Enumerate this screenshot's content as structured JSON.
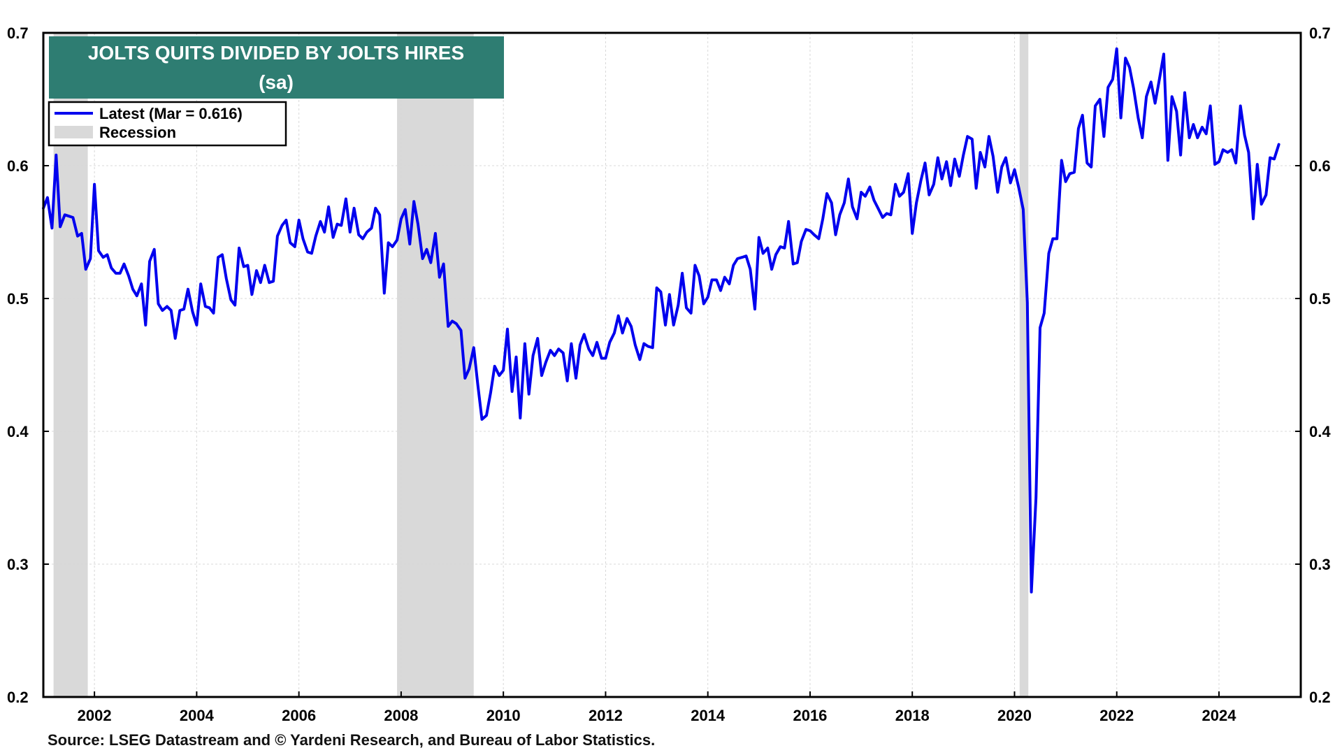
{
  "chart_data": {
    "type": "line",
    "title": "JOLTS QUITS DIVIDED BY JOLTS HIRES",
    "subtitle": "(sa)",
    "xlabel": "",
    "ylabel": "",
    "xlim": [
      2001.0,
      2025.6
    ],
    "ylim": [
      0.2,
      0.7
    ],
    "x_ticks": [
      2002,
      2004,
      2006,
      2008,
      2010,
      2012,
      2014,
      2016,
      2018,
      2020,
      2022,
      2024
    ],
    "x_tick_labels": [
      "2002",
      "2004",
      "2006",
      "2008",
      "2010",
      "2012",
      "2014",
      "2016",
      "2018",
      "2020",
      "2022",
      "2024"
    ],
    "y_ticks": [
      0.2,
      0.3,
      0.4,
      0.5,
      0.6,
      0.7
    ],
    "y_tick_labels": [
      "0.2",
      "0.3",
      "0.4",
      "0.5",
      "0.6",
      "0.7"
    ],
    "grid": true,
    "legend_position": "top-left",
    "recessions": [
      {
        "start": 2001.2,
        "end": 2001.87
      },
      {
        "start": 2007.92,
        "end": 2009.42
      },
      {
        "start": 2020.1,
        "end": 2020.27
      }
    ],
    "series": [
      {
        "name": "Latest (Mar = 0.616)",
        "color": "#0000ee",
        "x": [
          2001.0,
          2001.08,
          2001.17,
          2001.25,
          2001.33,
          2001.42,
          2001.5,
          2001.58,
          2001.67,
          2001.75,
          2001.83,
          2001.92,
          2002.0,
          2002.08,
          2002.17,
          2002.25,
          2002.33,
          2002.42,
          2002.5,
          2002.58,
          2002.67,
          2002.75,
          2002.83,
          2002.92,
          2003.0,
          2003.08,
          2003.17,
          2003.25,
          2003.33,
          2003.42,
          2003.5,
          2003.58,
          2003.67,
          2003.75,
          2003.83,
          2003.92,
          2004.0,
          2004.08,
          2004.17,
          2004.25,
          2004.33,
          2004.42,
          2004.5,
          2004.58,
          2004.67,
          2004.75,
          2004.83,
          2004.92,
          2005.0,
          2005.08,
          2005.17,
          2005.25,
          2005.33,
          2005.42,
          2005.5,
          2005.58,
          2005.67,
          2005.75,
          2005.83,
          2005.92,
          2006.0,
          2006.08,
          2006.17,
          2006.25,
          2006.33,
          2006.42,
          2006.5,
          2006.58,
          2006.67,
          2006.75,
          2006.83,
          2006.92,
          2007.0,
          2007.08,
          2007.17,
          2007.25,
          2007.33,
          2007.42,
          2007.5,
          2007.58,
          2007.67,
          2007.75,
          2007.83,
          2007.92,
          2008.0,
          2008.08,
          2008.17,
          2008.25,
          2008.33,
          2008.42,
          2008.5,
          2008.58,
          2008.67,
          2008.75,
          2008.83,
          2008.92,
          2009.0,
          2009.08,
          2009.17,
          2009.25,
          2009.33,
          2009.42,
          2009.5,
          2009.58,
          2009.67,
          2009.75,
          2009.83,
          2009.92,
          2010.0,
          2010.08,
          2010.17,
          2010.25,
          2010.33,
          2010.42,
          2010.5,
          2010.58,
          2010.67,
          2010.75,
          2010.83,
          2010.92,
          2011.0,
          2011.08,
          2011.17,
          2011.25,
          2011.33,
          2011.42,
          2011.5,
          2011.58,
          2011.67,
          2011.75,
          2011.83,
          2011.92,
          2012.0,
          2012.08,
          2012.17,
          2012.25,
          2012.33,
          2012.42,
          2012.5,
          2012.58,
          2012.67,
          2012.75,
          2012.83,
          2012.92,
          2013.0,
          2013.08,
          2013.17,
          2013.25,
          2013.33,
          2013.42,
          2013.5,
          2013.58,
          2013.67,
          2013.75,
          2013.83,
          2013.92,
          2014.0,
          2014.08,
          2014.17,
          2014.25,
          2014.33,
          2014.42,
          2014.5,
          2014.58,
          2014.67,
          2014.75,
          2014.83,
          2014.92,
          2015.0,
          2015.08,
          2015.17,
          2015.25,
          2015.33,
          2015.42,
          2015.5,
          2015.58,
          2015.67,
          2015.75,
          2015.83,
          2015.92,
          2016.0,
          2016.08,
          2016.17,
          2016.25,
          2016.33,
          2016.42,
          2016.5,
          2016.58,
          2016.67,
          2016.75,
          2016.83,
          2016.92,
          2017.0,
          2017.08,
          2017.17,
          2017.25,
          2017.33,
          2017.42,
          2017.5,
          2017.58,
          2017.67,
          2017.75,
          2017.83,
          2017.92,
          2018.0,
          2018.08,
          2018.17,
          2018.25,
          2018.33,
          2018.42,
          2018.5,
          2018.58,
          2018.67,
          2018.75,
          2018.83,
          2018.92,
          2019.0,
          2019.08,
          2019.17,
          2019.25,
          2019.33,
          2019.42,
          2019.5,
          2019.58,
          2019.67,
          2019.75,
          2019.83,
          2019.92,
          2020.0,
          2020.08,
          2020.17,
          2020.25,
          2020.33,
          2020.42,
          2020.5,
          2020.58,
          2020.67,
          2020.75,
          2020.83,
          2020.92,
          2021.0,
          2021.08,
          2021.17,
          2021.25,
          2021.33,
          2021.42,
          2021.5,
          2021.58,
          2021.67,
          2021.75,
          2021.83,
          2021.92,
          2022.0,
          2022.08,
          2022.17,
          2022.25,
          2022.33,
          2022.42,
          2022.5,
          2022.58,
          2022.67,
          2022.75,
          2022.83,
          2022.92,
          2023.0,
          2023.08,
          2023.17,
          2023.25,
          2023.33,
          2023.42,
          2023.5,
          2023.58,
          2023.67,
          2023.75,
          2023.83,
          2023.92,
          2024.0,
          2024.08,
          2024.17,
          2024.25,
          2024.33,
          2024.42,
          2024.5,
          2024.58,
          2024.67,
          2024.75,
          2024.83,
          2024.92,
          2025.0,
          2025.08,
          2025.17
        ],
        "values": [
          0.568,
          0.576,
          0.553,
          0.608,
          0.554,
          0.563,
          0.562,
          0.561,
          0.547,
          0.549,
          0.522,
          0.53,
          0.586,
          0.536,
          0.531,
          0.533,
          0.523,
          0.519,
          0.519,
          0.526,
          0.517,
          0.507,
          0.502,
          0.511,
          0.48,
          0.528,
          0.537,
          0.496,
          0.491,
          0.494,
          0.491,
          0.47,
          0.491,
          0.492,
          0.507,
          0.49,
          0.48,
          0.511,
          0.494,
          0.493,
          0.489,
          0.531,
          0.533,
          0.515,
          0.499,
          0.495,
          0.538,
          0.524,
          0.525,
          0.503,
          0.521,
          0.512,
          0.525,
          0.512,
          0.513,
          0.547,
          0.555,
          0.559,
          0.542,
          0.539,
          0.559,
          0.545,
          0.535,
          0.534,
          0.547,
          0.558,
          0.55,
          0.569,
          0.546,
          0.556,
          0.555,
          0.575,
          0.55,
          0.568,
          0.548,
          0.545,
          0.55,
          0.553,
          0.568,
          0.563,
          0.504,
          0.542,
          0.539,
          0.544,
          0.56,
          0.567,
          0.541,
          0.573,
          0.556,
          0.53,
          0.537,
          0.527,
          0.549,
          0.516,
          0.526,
          0.479,
          0.483,
          0.481,
          0.476,
          0.44,
          0.447,
          0.463,
          0.435,
          0.409,
          0.412,
          0.429,
          0.449,
          0.442,
          0.446,
          0.477,
          0.43,
          0.456,
          0.41,
          0.466,
          0.428,
          0.457,
          0.47,
          0.442,
          0.452,
          0.461,
          0.457,
          0.462,
          0.459,
          0.438,
          0.466,
          0.44,
          0.465,
          0.473,
          0.462,
          0.457,
          0.467,
          0.455,
          0.455,
          0.467,
          0.474,
          0.487,
          0.474,
          0.485,
          0.479,
          0.465,
          0.454,
          0.466,
          0.464,
          0.463,
          0.508,
          0.505,
          0.48,
          0.503,
          0.48,
          0.495,
          0.519,
          0.493,
          0.489,
          0.525,
          0.517,
          0.496,
          0.501,
          0.514,
          0.514,
          0.506,
          0.516,
          0.511,
          0.525,
          0.53,
          0.531,
          0.532,
          0.522,
          0.492,
          0.546,
          0.534,
          0.538,
          0.522,
          0.533,
          0.539,
          0.538,
          0.558,
          0.526,
          0.527,
          0.543,
          0.552,
          0.551,
          0.548,
          0.545,
          0.56,
          0.579,
          0.572,
          0.548,
          0.563,
          0.572,
          0.59,
          0.569,
          0.56,
          0.58,
          0.577,
          0.584,
          0.574,
          0.568,
          0.561,
          0.564,
          0.563,
          0.586,
          0.577,
          0.58,
          0.594,
          0.549,
          0.572,
          0.589,
          0.602,
          0.578,
          0.586,
          0.606,
          0.59,
          0.603,
          0.585,
          0.605,
          0.592,
          0.608,
          0.622,
          0.62,
          0.583,
          0.61,
          0.599,
          0.622,
          0.607,
          0.58,
          0.599,
          0.606,
          0.587,
          0.597,
          0.584,
          0.567,
          0.497,
          0.279,
          0.35,
          0.478,
          0.489,
          0.534,
          0.545,
          0.545,
          0.604,
          0.588,
          0.594,
          0.595,
          0.628,
          0.638,
          0.602,
          0.599,
          0.645,
          0.65,
          0.622,
          0.659,
          0.665,
          0.688,
          0.636,
          0.681,
          0.674,
          0.658,
          0.636,
          0.621,
          0.652,
          0.663,
          0.647,
          0.664,
          0.684,
          0.604,
          0.652,
          0.641,
          0.608,
          0.655,
          0.621,
          0.631,
          0.621,
          0.629,
          0.624,
          0.645,
          0.601,
          0.603,
          0.612,
          0.61,
          0.612,
          0.602,
          0.645,
          0.623,
          0.61,
          0.56,
          0.601,
          0.571,
          0.578,
          0.606,
          0.605,
          0.616
        ]
      }
    ],
    "legend": [
      {
        "label": "Latest (Mar = 0.616)",
        "kind": "line",
        "color": "#0000ee"
      },
      {
        "label": "Recession",
        "kind": "box",
        "color": "#d9d9d9"
      }
    ],
    "source": "Source: LSEG Datastream and © Yardeni Research, and Bureau of Labor Statistics."
  },
  "colors": {
    "title_bg": "#2e7d72",
    "title_text": "#ffffff",
    "line": "#0000ee",
    "recession": "#d9d9d9",
    "grid": "#d8d8d8",
    "axis": "#000000"
  }
}
